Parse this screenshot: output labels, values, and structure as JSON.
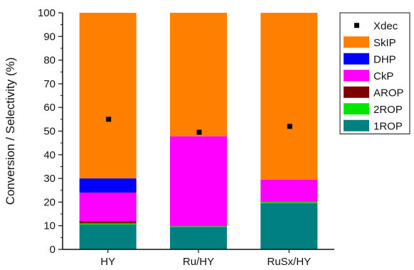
{
  "chart_data": {
    "type": "bar",
    "stacked": true,
    "categories": [
      "HY",
      "Ru/HY",
      "RuSx/HY"
    ],
    "ylabel": "Conversion / Selectivity (%)",
    "xlabel": "",
    "ylim": [
      0,
      100
    ],
    "yticks": [
      "0",
      "10",
      "20",
      "30",
      "40",
      "50",
      "60",
      "70",
      "80",
      "90",
      "100"
    ],
    "series": [
      {
        "name": "1ROP",
        "color": "#008080",
        "values": [
          10.5,
          9.5,
          19.5
        ]
      },
      {
        "name": "2ROP",
        "color": "#00e600",
        "values": [
          0.5,
          0.3,
          0.5
        ]
      },
      {
        "name": "AROP",
        "color": "#800000",
        "values": [
          1.0,
          0.0,
          0.0
        ]
      },
      {
        "name": "CkP",
        "color": "#ff00ff",
        "values": [
          12.0,
          38.0,
          9.5
        ]
      },
      {
        "name": "DHP",
        "color": "#0000ff",
        "values": [
          6.0,
          0.0,
          0.0
        ]
      },
      {
        "name": "SkIP",
        "color": "#ff8000",
        "values": [
          70.0,
          52.2,
          70.5
        ]
      }
    ],
    "xdec": {
      "name": "Xdec",
      "color": "#000000",
      "values": [
        55,
        49.5,
        52
      ]
    },
    "legend_order": [
      "Xdec",
      "SkIP",
      "DHP",
      "CkP",
      "AROP",
      "2ROP",
      "1ROP"
    ],
    "legend_position": "top-right",
    "grid": false
  }
}
